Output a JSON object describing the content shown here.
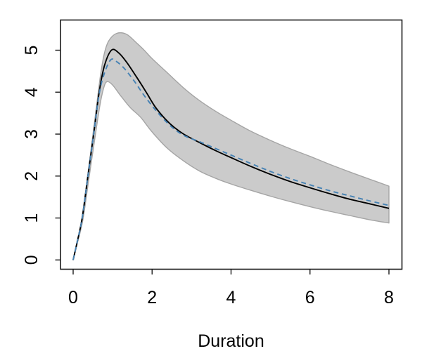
{
  "figure": {
    "background": "#ffffff",
    "axis_color": "#1a1a1a",
    "text_color": "#000000"
  },
  "chart_data": {
    "type": "line",
    "title": "",
    "xlabel": "Duration",
    "ylabel": "",
    "xlim": [
      0,
      8
    ],
    "ylim": [
      0,
      5.45
    ],
    "grid": false,
    "legend": "none",
    "x_ticks": [
      "0",
      "2",
      "4",
      "6",
      "8"
    ],
    "x_tick_values": [
      0,
      2,
      4,
      6,
      8
    ],
    "y_ticks": [
      "0",
      "1",
      "2",
      "3",
      "4",
      "5"
    ],
    "y_tick_values": [
      0,
      1,
      2,
      3,
      4,
      5
    ],
    "series": [
      {
        "name": "estimate-solid",
        "line_style": "solid",
        "color": "#000000",
        "points": [
          [
            0,
            0
          ],
          [
            0.1,
            0.42
          ],
          [
            0.23,
            1.0
          ],
          [
            0.375,
            2.0
          ],
          [
            0.52,
            3.0
          ],
          [
            0.66,
            4.0
          ],
          [
            0.79,
            4.62
          ],
          [
            0.97,
            5.0
          ],
          [
            1.15,
            4.94
          ],
          [
            1.35,
            4.72
          ],
          [
            1.6,
            4.37
          ],
          [
            1.85,
            4.0
          ],
          [
            2.1,
            3.62
          ],
          [
            2.45,
            3.25
          ],
          [
            2.8,
            3.0
          ],
          [
            3.2,
            2.8
          ],
          [
            3.6,
            2.61
          ],
          [
            4,
            2.44
          ],
          [
            4.5,
            2.23
          ],
          [
            5,
            2.04
          ],
          [
            5.5,
            1.87
          ],
          [
            6,
            1.72
          ],
          [
            6.5,
            1.58
          ],
          [
            7,
            1.45
          ],
          [
            7.5,
            1.34
          ],
          [
            8,
            1.23
          ]
        ]
      },
      {
        "name": "comparison-dashed",
        "line_style": "dashed",
        "color": "#4682B4",
        "points": [
          [
            0,
            0
          ],
          [
            0.1,
            0.42
          ],
          [
            0.23,
            1.0
          ],
          [
            0.375,
            2.0
          ],
          [
            0.52,
            3.0
          ],
          [
            0.655,
            3.93
          ],
          [
            0.78,
            4.42
          ],
          [
            0.95,
            4.77
          ],
          [
            1.1,
            4.73
          ],
          [
            1.3,
            4.56
          ],
          [
            1.55,
            4.26
          ],
          [
            1.8,
            3.92
          ],
          [
            2.1,
            3.56
          ],
          [
            2.45,
            3.21
          ],
          [
            2.8,
            2.97
          ],
          [
            3.2,
            2.82
          ],
          [
            3.6,
            2.66
          ],
          [
            4,
            2.5
          ],
          [
            4.5,
            2.3
          ],
          [
            5,
            2.11
          ],
          [
            5.5,
            1.94
          ],
          [
            6,
            1.79
          ],
          [
            6.5,
            1.65
          ],
          [
            7,
            1.53
          ],
          [
            7.5,
            1.41
          ],
          [
            8,
            1.3
          ]
        ]
      }
    ],
    "band": {
      "name": "confidence-band",
      "fill": "#cbcbcb",
      "edge": "#a5a5a5",
      "upper": [
        [
          0,
          0
        ],
        [
          0.11,
          0.46
        ],
        [
          0.23,
          1.05
        ],
        [
          0.38,
          2.1
        ],
        [
          0.53,
          3.2
        ],
        [
          0.67,
          4.25
        ],
        [
          0.78,
          4.88
        ],
        [
          0.9,
          5.22
        ],
        [
          1.1,
          5.4
        ],
        [
          1.35,
          5.38
        ],
        [
          1.6,
          5.18
        ],
        [
          1.8,
          5.0
        ],
        [
          2.0,
          4.8
        ],
        [
          2.4,
          4.45
        ],
        [
          2.8,
          4.1
        ],
        [
          3.2,
          3.8
        ],
        [
          3.6,
          3.55
        ],
        [
          4,
          3.33
        ],
        [
          4.5,
          3.07
        ],
        [
          5,
          2.85
        ],
        [
          5.5,
          2.65
        ],
        [
          6,
          2.47
        ],
        [
          6.5,
          2.28
        ],
        [
          7,
          2.1
        ],
        [
          7.5,
          1.93
        ],
        [
          8,
          1.76
        ]
      ],
      "lower": [
        [
          0,
          0
        ],
        [
          0.11,
          0.41
        ],
        [
          0.25,
          0.97
        ],
        [
          0.4,
          1.95
        ],
        [
          0.55,
          2.9
        ],
        [
          0.68,
          3.7
        ],
        [
          0.78,
          4.12
        ],
        [
          0.86,
          4.25
        ],
        [
          1.0,
          4.17
        ],
        [
          1.2,
          3.92
        ],
        [
          1.45,
          3.63
        ],
        [
          1.71,
          3.4
        ],
        [
          2.0,
          3.05
        ],
        [
          2.4,
          2.65
        ],
        [
          2.8,
          2.36
        ],
        [
          3.2,
          2.12
        ],
        [
          3.6,
          1.95
        ],
        [
          4,
          1.81
        ],
        [
          4.5,
          1.66
        ],
        [
          5,
          1.52
        ],
        [
          5.5,
          1.39
        ],
        [
          6,
          1.27
        ],
        [
          6.5,
          1.16
        ],
        [
          7,
          1.06
        ],
        [
          7.5,
          0.96
        ],
        [
          8,
          0.88
        ]
      ]
    }
  }
}
